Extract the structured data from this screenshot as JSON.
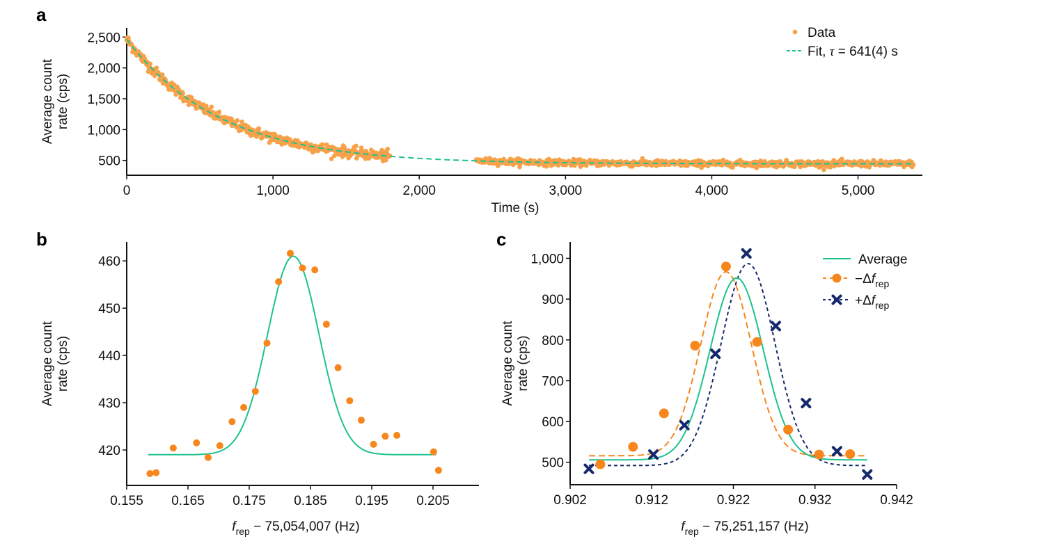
{
  "colors": {
    "data_a": "#f7a24a",
    "fit": "#1cc28e",
    "orange": "#f7861c",
    "navy": "#14286b",
    "axis": "#111111"
  },
  "chart_data": [
    {
      "panel": "a",
      "type": "scatter",
      "title": "",
      "xlabel": "Time (s)",
      "ylabel_lines": [
        "Average count",
        "rate (cps)"
      ],
      "xlim": [
        0,
        5440
      ],
      "ylim": [
        260,
        2650
      ],
      "xticks": [
        0,
        1000,
        2000,
        3000,
        4000,
        5000
      ],
      "xtick_labels": [
        "0",
        "1,000",
        "2,000",
        "3,000",
        "4,000",
        "5,000"
      ],
      "yticks": [
        500,
        1000,
        1500,
        2000,
        2500
      ],
      "ytick_labels": [
        "500",
        "1,000",
        "1,500",
        "2,000",
        "2,500"
      ],
      "legend_position": "top-right",
      "legend": [
        {
          "label": "Data",
          "marker": "dot"
        },
        {
          "label_prefix": "Fit, ",
          "label_symbol": "τ",
          "label_suffix": " = 641(4) s",
          "marker": "dashed-line"
        }
      ],
      "series": [
        {
          "name": "Data",
          "kind": "scatter",
          "segments": [
            [
              0,
              1800
            ],
            [
              2390,
              5380
            ]
          ],
          "model": {
            "form": "exponential_decay",
            "amplitude": 2020,
            "offset": 445,
            "tau_s": 641,
            "noise_cps": 35
          }
        },
        {
          "name": "Fit",
          "kind": "dashed-line",
          "x_range": [
            0,
            5380
          ],
          "model": {
            "form": "exponential_decay",
            "amplitude": 2020,
            "offset": 445,
            "tau_s": 641
          }
        }
      ]
    },
    {
      "panel": "b",
      "type": "scatter",
      "title": "",
      "xlabel_main": "f",
      "xlabel_sub": "rep",
      "xlabel_rest": " − 75,054,007 (Hz)",
      "ylabel_lines": [
        "Average count",
        "rate (cps)"
      ],
      "xlim": [
        0.155,
        0.2125
      ],
      "ylim": [
        412.5,
        464
      ],
      "xticks": [
        0.155,
        0.165,
        0.175,
        0.185,
        0.195,
        0.205
      ],
      "xtick_labels": [
        "0.155",
        "0.165",
        "0.175",
        "0.185",
        "0.195",
        "0.205"
      ],
      "yticks": [
        420,
        430,
        440,
        450,
        460
      ],
      "ytick_labels": [
        "420",
        "430",
        "440",
        "450",
        "460"
      ],
      "series": [
        {
          "name": "Data",
          "kind": "scatter",
          "x": [
            0.1588,
            0.1598,
            0.1626,
            0.1664,
            0.1683,
            0.1702,
            0.1722,
            0.1741,
            0.176,
            0.1779,
            0.1798,
            0.1817,
            0.1837,
            0.1857,
            0.1876,
            0.1895,
            0.1914,
            0.1933,
            0.1953,
            0.1972,
            0.1991,
            0.2051,
            0.2059
          ],
          "y": [
            415.0,
            415.2,
            420.4,
            421.5,
            418.4,
            420.9,
            426.0,
            429.0,
            432.4,
            442.6,
            455.6,
            461.6,
            458.5,
            458.1,
            446.6,
            437.4,
            430.4,
            426.3,
            421.2,
            422.9,
            423.1,
            419.6,
            415.7
          ]
        },
        {
          "name": "Fit",
          "kind": "line",
          "x_range": [
            0.1585,
            0.2055
          ],
          "model": {
            "form": "gaussian",
            "baseline": 419,
            "amplitude": 42,
            "center": 0.1822,
            "sigma": 0.0042
          }
        }
      ]
    },
    {
      "panel": "c",
      "type": "scatter",
      "title": "",
      "xlabel_main": "f",
      "xlabel_sub": "rep",
      "xlabel_rest": " − 75,251,157 (Hz)",
      "ylabel_lines": [
        "Average count",
        "rate (cps)"
      ],
      "xlim": [
        0.902,
        0.942
      ],
      "ylim": [
        445,
        1040
      ],
      "xticks": [
        0.902,
        0.912,
        0.922,
        0.932,
        0.942
      ],
      "xtick_labels": [
        "0.902",
        "0.912",
        "0.922",
        "0.932",
        "0.942"
      ],
      "yticks": [
        500,
        600,
        700,
        800,
        900,
        1000
      ],
      "ytick_labels": [
        "500",
        "600",
        "700",
        "800",
        "900",
        "1,000"
      ],
      "legend_position": "top-right",
      "legend": [
        {
          "label": "Average",
          "marker": "solid-line",
          "color_key": "fit"
        },
        {
          "label_prefix": "−Δ",
          "label_italic": "f",
          "label_sub": "rep",
          "marker": "dot-dashed",
          "color_key": "orange"
        },
        {
          "label_prefix": "+Δ",
          "label_italic": "f",
          "label_sub": "rep",
          "marker": "cross-dashed",
          "color_key": "navy"
        }
      ],
      "series": [
        {
          "name": "Average",
          "kind": "line",
          "color_key": "fit",
          "x_range": [
            0.9043,
            0.9384
          ],
          "model": {
            "form": "gaussian",
            "baseline": 506,
            "amplitude": 446,
            "center": 0.9224,
            "sigma": 0.00325
          }
        },
        {
          "name": "−Δf_rep",
          "kind": "scatter+dashed-line",
          "color_key": "orange",
          "x": [
            0.9057,
            0.9097,
            0.9135,
            0.9173,
            0.9211,
            0.9249,
            0.9287,
            0.9325,
            0.9363
          ],
          "y": [
            495,
            538,
            620,
            786,
            980,
            795,
            580,
            519,
            520
          ],
          "x_range": [
            0.9043,
            0.9384
          ],
          "model": {
            "form": "gaussian",
            "baseline": 516,
            "amplitude": 451,
            "center": 0.9211,
            "sigma": 0.0031
          }
        },
        {
          "name": "+Δf_rep",
          "kind": "scatter+dashed-line",
          "color_key": "navy",
          "x": [
            0.9043,
            0.9122,
            0.916,
            0.9198,
            0.9236,
            0.9272,
            0.9309,
            0.9347,
            0.9384
          ],
          "y": [
            484,
            519,
            591,
            766,
            1012,
            834,
            645,
            527,
            470
          ],
          "x_range": [
            0.9043,
            0.9384
          ],
          "model": {
            "form": "gaussian",
            "baseline": 492,
            "amplitude": 495,
            "center": 0.9238,
            "sigma": 0.0033
          }
        }
      ]
    }
  ]
}
